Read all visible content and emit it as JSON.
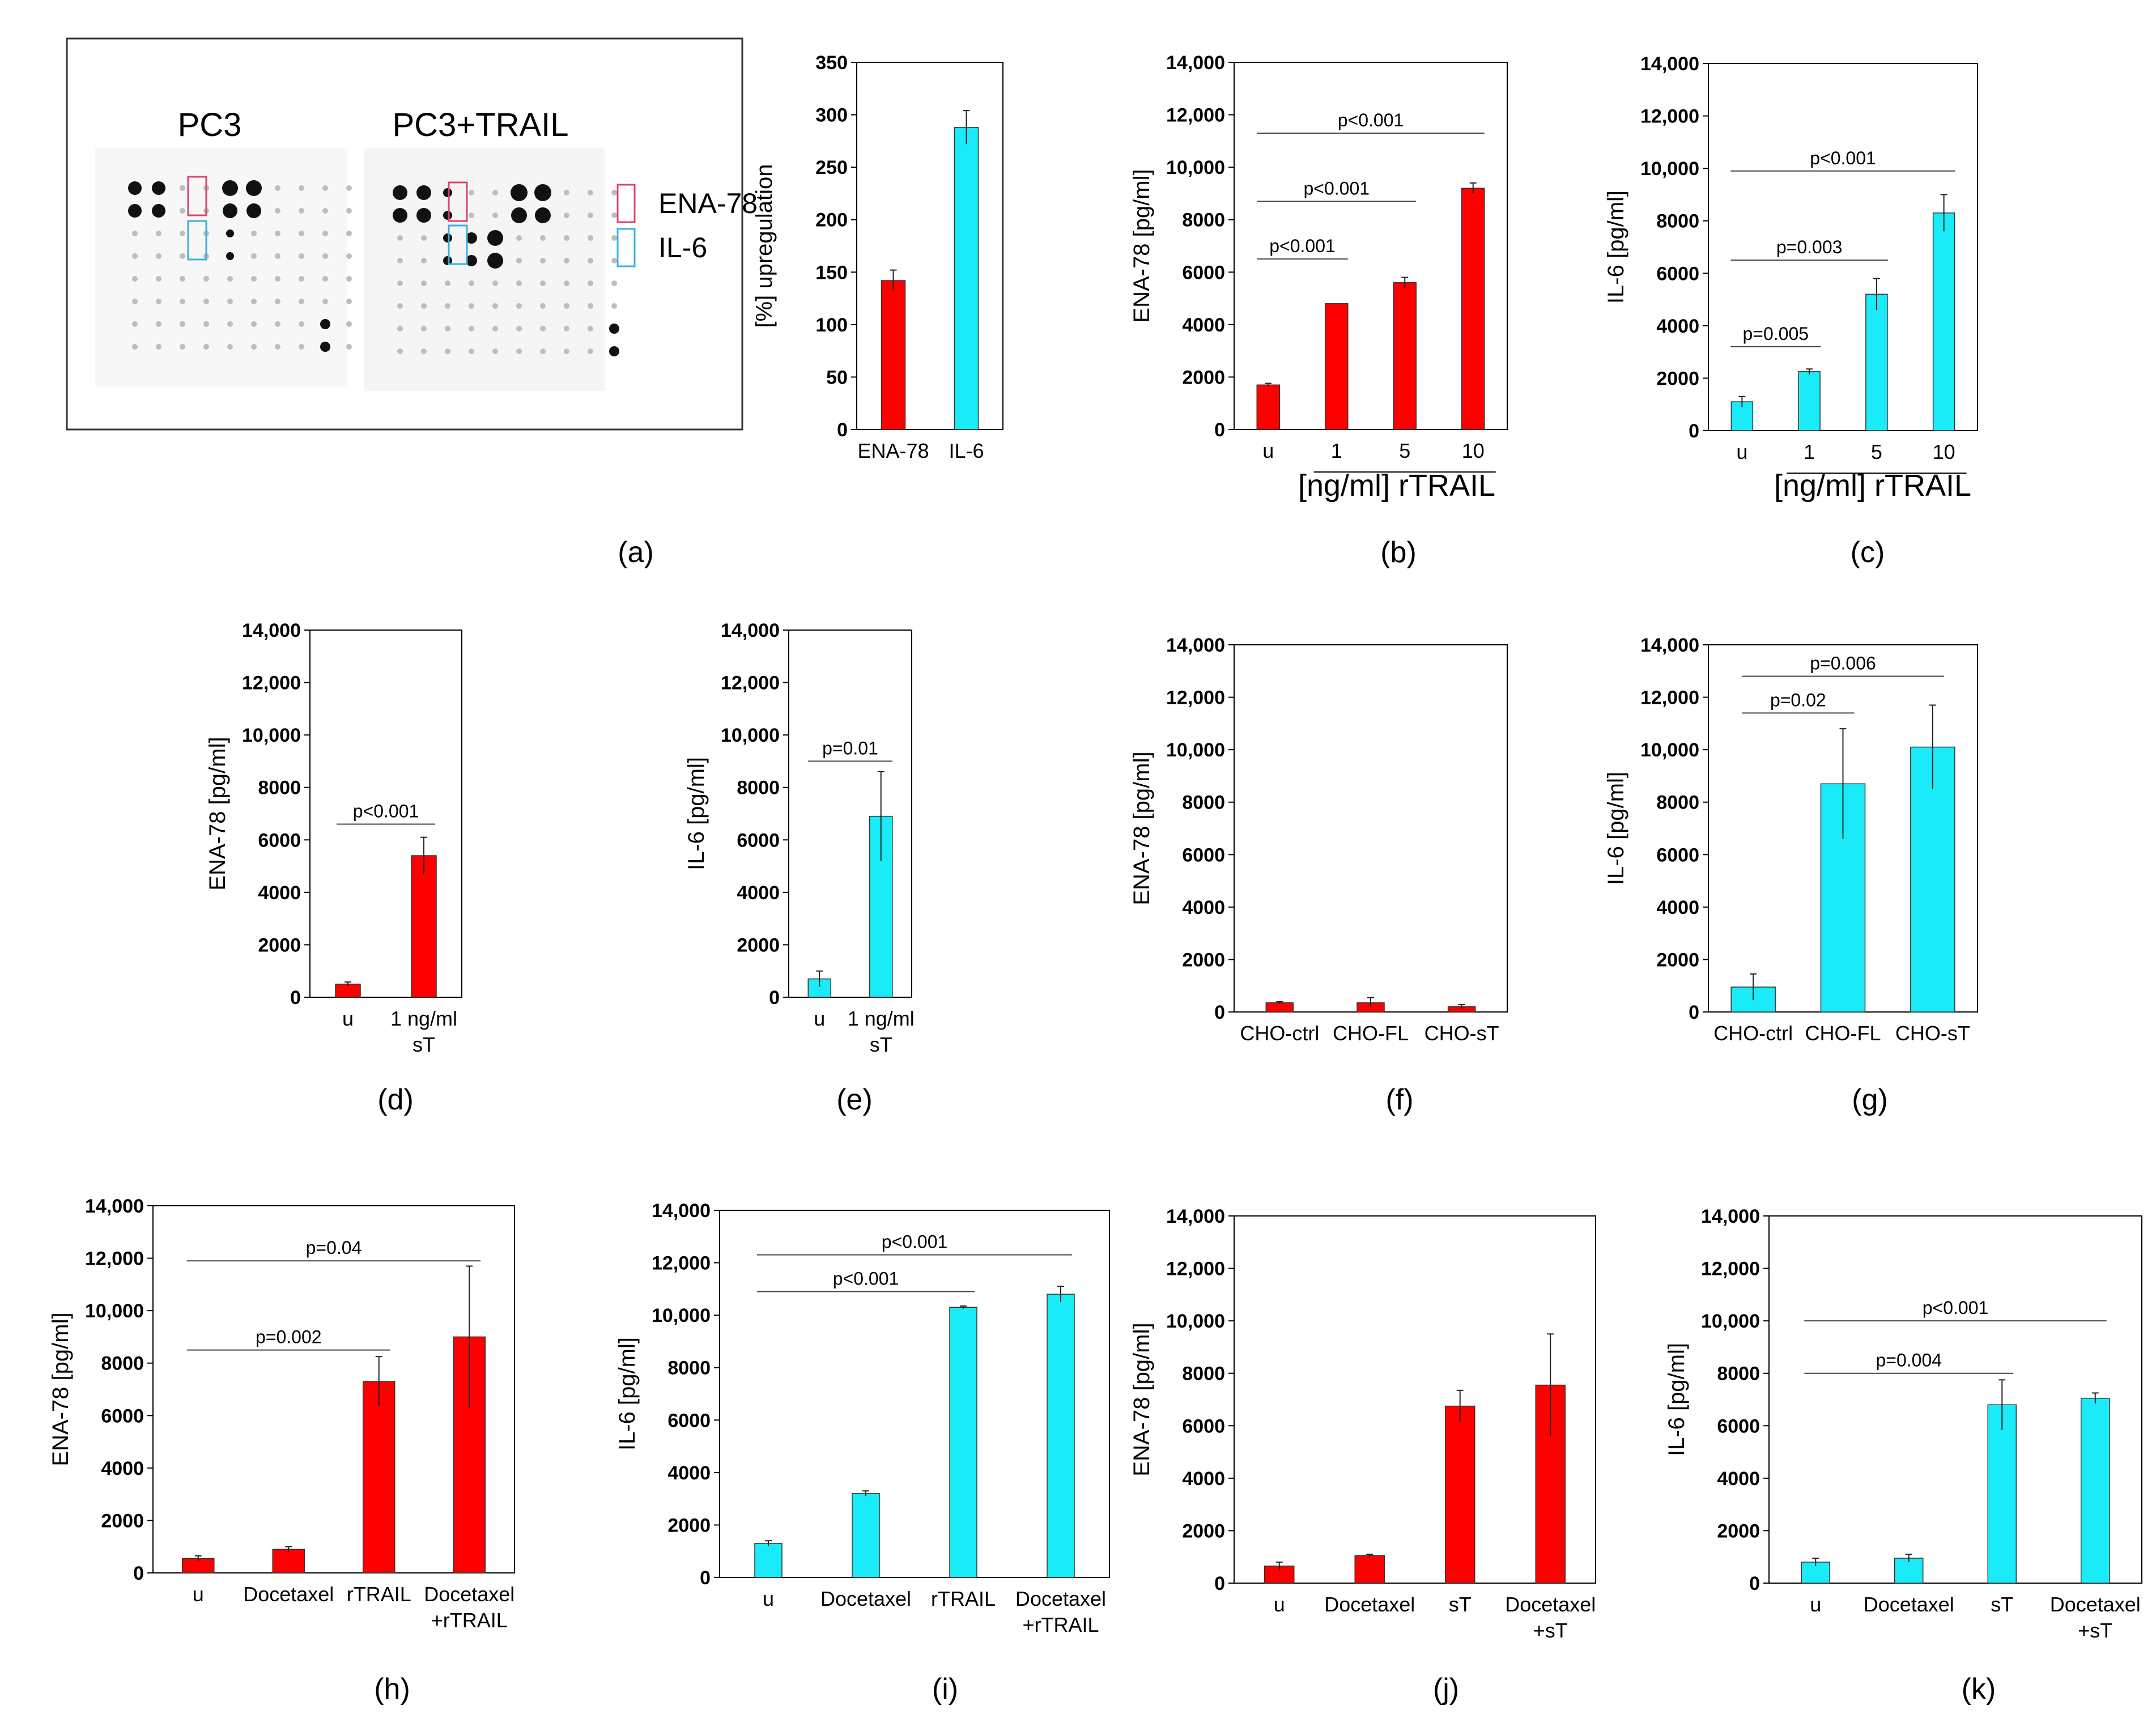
{
  "figure": {
    "colors": {
      "red": "#ff0000",
      "cyan": "#19ecf8",
      "red_box": "#e0426a",
      "cyan_box": "#3ab0e0"
    }
  },
  "panel_a": {
    "blot_label_1": "PC3",
    "blot_label_2": "PC3+TRAIL",
    "legend_1": "ENA-78",
    "legend_2": "IL-6",
    "caption": "(a)"
  },
  "chart_data": [
    {
      "id": "a2",
      "type": "bar",
      "categories": [
        "ENA-78",
        "IL-6"
      ],
      "values": [
        142,
        288
      ],
      "errors": [
        10,
        16
      ],
      "colors": [
        "red",
        "cyan"
      ],
      "ylabel": "[%] upregulation",
      "ylim": [
        0,
        350
      ],
      "yticks": [
        "0",
        "50",
        "100",
        "150",
        "200",
        "250",
        "300",
        "350"
      ],
      "cat_sub": [],
      "caption": "",
      "brackets": [],
      "group_label": ""
    },
    {
      "id": "b",
      "type": "bar",
      "categories": [
        "u",
        "1",
        "5",
        "10"
      ],
      "values": [
        1700,
        4800,
        5600,
        9200
      ],
      "errors": [
        60,
        0,
        200,
        200
      ],
      "colors": [
        "red",
        "red",
        "red",
        "red"
      ],
      "ylabel": "ENA-78 [pg/ml]",
      "ylim": [
        0,
        14000
      ],
      "yticks": [
        "0",
        "2000",
        "4000",
        "6000",
        "8000",
        "10,000",
        "12,000",
        "14,000"
      ],
      "cat_sub": [],
      "caption": "(b)",
      "brackets": [
        {
          "from": 0,
          "to": 1,
          "y": 6500,
          "label": "p<0.001"
        },
        {
          "from": 0,
          "to": 2,
          "y": 8700,
          "label": "p<0.001"
        },
        {
          "from": 0,
          "to": 3,
          "y": 11300,
          "label": "p<0.001"
        }
      ],
      "group_label": "[ng/ml] rTRAIL"
    },
    {
      "id": "c",
      "type": "bar",
      "categories": [
        "u",
        "1",
        "5",
        "10"
      ],
      "values": [
        1100,
        2250,
        5200,
        8300
      ],
      "errors": [
        200,
        100,
        600,
        700
      ],
      "colors": [
        "cyan",
        "cyan",
        "cyan",
        "cyan"
      ],
      "ylabel": "IL-6 [pg/ml]",
      "ylim": [
        0,
        14000
      ],
      "yticks": [
        "0",
        "2000",
        "4000",
        "6000",
        "8000",
        "10,000",
        "12,000",
        "14,000"
      ],
      "cat_sub": [],
      "caption": "(c)",
      "brackets": [
        {
          "from": 0,
          "to": 1,
          "y": 3200,
          "label": "p=0.005"
        },
        {
          "from": 0,
          "to": 2,
          "y": 6500,
          "label": "p=0.003"
        },
        {
          "from": 0,
          "to": 3,
          "y": 9900,
          "label": "p<0.001"
        }
      ],
      "group_label": "[ng/ml] rTRAIL"
    },
    {
      "id": "d",
      "type": "bar",
      "categories": [
        "u",
        "1 ng/ml"
      ],
      "values": [
        500,
        5400
      ],
      "errors": [
        80,
        700
      ],
      "colors": [
        "red",
        "red"
      ],
      "ylabel": "ENA-78 [pg/ml]",
      "ylim": [
        0,
        14000
      ],
      "yticks": [
        "0",
        "2000",
        "4000",
        "6000",
        "8000",
        "10,000",
        "12,000",
        "14,000"
      ],
      "cat_sub": [
        "",
        "sT"
      ],
      "caption": "(d)",
      "brackets": [
        {
          "from": 0,
          "to": 1,
          "y": 6600,
          "label": "p<0.001"
        }
      ],
      "group_label": ""
    },
    {
      "id": "e",
      "type": "bar",
      "categories": [
        "u",
        "1 ng/ml"
      ],
      "values": [
        700,
        6900
      ],
      "errors": [
        300,
        1700
      ],
      "colors": [
        "cyan",
        "cyan"
      ],
      "ylabel": "IL-6 [pg/ml]",
      "ylim": [
        0,
        14000
      ],
      "yticks": [
        "0",
        "2000",
        "4000",
        "6000",
        "8000",
        "10,000",
        "12,000",
        "14,000"
      ],
      "cat_sub": [
        "",
        "sT"
      ],
      "caption": "(e)",
      "brackets": [
        {
          "from": 0,
          "to": 1,
          "y": 9000,
          "label": "p=0.01"
        }
      ],
      "group_label": ""
    },
    {
      "id": "f",
      "type": "bar",
      "categories": [
        "CHO-ctrl",
        "CHO-FL",
        "CHO-sT"
      ],
      "values": [
        350,
        350,
        200
      ],
      "errors": [
        40,
        200,
        80
      ],
      "colors": [
        "red",
        "red",
        "red"
      ],
      "ylabel": "ENA-78 [pg/ml]",
      "ylim": [
        0,
        14000
      ],
      "yticks": [
        "0",
        "2000",
        "4000",
        "6000",
        "8000",
        "10,000",
        "12,000",
        "14,000"
      ],
      "cat_sub": [],
      "caption": "(f)",
      "brackets": [],
      "group_label": ""
    },
    {
      "id": "g",
      "type": "bar",
      "categories": [
        "CHO-ctrl",
        "CHO-FL",
        "CHO-sT"
      ],
      "values": [
        950,
        8700,
        10100
      ],
      "errors": [
        500,
        2100,
        1600
      ],
      "colors": [
        "cyan",
        "cyan",
        "cyan"
      ],
      "ylabel": "IL-6 [pg/ml]",
      "ylim": [
        0,
        14000
      ],
      "yticks": [
        "0",
        "2000",
        "4000",
        "6000",
        "8000",
        "10,000",
        "12,000",
        "14,000"
      ],
      "cat_sub": [],
      "caption": "(g)",
      "brackets": [
        {
          "from": 0,
          "to": 1,
          "y": 11400,
          "label": "p=0.02"
        },
        {
          "from": 0,
          "to": 2,
          "y": 12800,
          "label": "p=0.006"
        }
      ],
      "group_label": ""
    },
    {
      "id": "h",
      "type": "bar",
      "categories": [
        "u",
        "Docetaxel",
        "rTRAIL",
        "Docetaxel"
      ],
      "values": [
        550,
        900,
        7300,
        9000
      ],
      "errors": [
        100,
        100,
        950,
        2700
      ],
      "colors": [
        "red",
        "red",
        "red",
        "red"
      ],
      "ylabel": "ENA-78 [pg/ml]",
      "ylim": [
        0,
        14000
      ],
      "yticks": [
        "0",
        "2000",
        "4000",
        "6000",
        "8000",
        "10,000",
        "12,000",
        "14,000"
      ],
      "cat_sub": [
        "",
        "",
        "",
        "+rTRAIL"
      ],
      "caption": "(h)",
      "brackets": [
        {
          "from": 0,
          "to": 2,
          "y": 8500,
          "label": "p=0.002"
        },
        {
          "from": 0,
          "to": 3,
          "y": 11900,
          "label": "p=0.04"
        }
      ],
      "group_label": ""
    },
    {
      "id": "i",
      "type": "bar",
      "categories": [
        "u",
        "Docetaxel",
        "rTRAIL",
        "Docetaxel"
      ],
      "values": [
        1300,
        3200,
        10300,
        10800
      ],
      "errors": [
        100,
        100,
        50,
        300
      ],
      "colors": [
        "cyan",
        "cyan",
        "cyan",
        "cyan"
      ],
      "ylabel": "IL-6 [pg/ml]",
      "ylim": [
        0,
        14000
      ],
      "yticks": [
        "0",
        "2000",
        "4000",
        "6000",
        "8000",
        "10,000",
        "12,000",
        "14,000"
      ],
      "cat_sub": [
        "",
        "",
        "",
        "+rTRAIL"
      ],
      "caption": "(i)",
      "brackets": [
        {
          "from": 0,
          "to": 2,
          "y": 10900,
          "label": "p<0.001"
        },
        {
          "from": 0,
          "to": 3,
          "y": 12300,
          "label": "p<0.001"
        }
      ],
      "group_label": ""
    },
    {
      "id": "j",
      "type": "bar",
      "categories": [
        "u",
        "Docetaxel",
        "sT",
        "Docetaxel"
      ],
      "values": [
        650,
        1050,
        6750,
        7550
      ],
      "errors": [
        150,
        50,
        600,
        1950
      ],
      "colors": [
        "red",
        "red",
        "red",
        "red"
      ],
      "ylabel": "ENA-78 [pg/ml]",
      "ylim": [
        0,
        14000
      ],
      "yticks": [
        "0",
        "2000",
        "4000",
        "6000",
        "8000",
        "10,000",
        "12,000",
        "14,000"
      ],
      "cat_sub": [
        "",
        "",
        "",
        "+sT"
      ],
      "caption": "(j)",
      "brackets": [],
      "group_label": ""
    },
    {
      "id": "k",
      "type": "bar",
      "categories": [
        "u",
        "Docetaxel",
        "sT",
        "Docetaxel"
      ],
      "values": [
        800,
        950,
        6800,
        7050
      ],
      "errors": [
        150,
        150,
        950,
        200
      ],
      "colors": [
        "cyan",
        "cyan",
        "cyan",
        "cyan"
      ],
      "ylabel": "IL-6 [pg/ml]",
      "ylim": [
        0,
        14000
      ],
      "yticks": [
        "0",
        "2000",
        "4000",
        "6000",
        "8000",
        "10,000",
        "12,000",
        "14,000"
      ],
      "cat_sub": [
        "",
        "",
        "",
        "+sT"
      ],
      "caption": "(k)",
      "brackets": [
        {
          "from": 0,
          "to": 2,
          "y": 8000,
          "label": "p=0.004"
        },
        {
          "from": 0,
          "to": 3,
          "y": 10000,
          "label": "p<0.001"
        }
      ],
      "group_label": ""
    }
  ]
}
